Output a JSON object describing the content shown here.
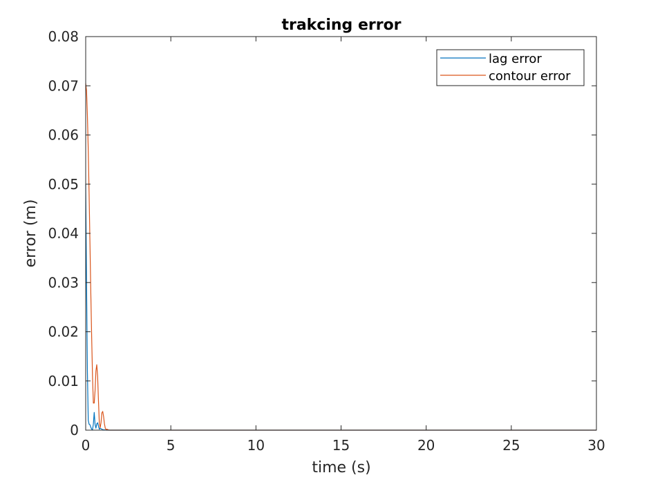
{
  "chart_data": {
    "type": "line",
    "title": "trakcing error",
    "xlabel": "time (s)",
    "ylabel": "error (m)",
    "xlim": [
      0,
      30
    ],
    "ylim": [
      0,
      0.08
    ],
    "xticks": [
      0,
      5,
      10,
      15,
      20,
      25,
      30
    ],
    "xtick_labels": [
      "0",
      "5",
      "10",
      "15",
      "20",
      "25",
      "30"
    ],
    "yticks": [
      0,
      0.01,
      0.02,
      0.03,
      0.04,
      0.05,
      0.06,
      0.07,
      0.08
    ],
    "ytick_labels": [
      "0",
      "0.01",
      "0.02",
      "0.03",
      "0.04",
      "0.05",
      "0.06",
      "0.07",
      "0.08"
    ],
    "grid": false,
    "legend_position": "top-right",
    "series": [
      {
        "name": "lag error",
        "color": "#0072BD",
        "x": [
          0,
          0.05,
          0.1,
          0.15,
          0.2,
          0.25,
          0.3,
          0.35,
          0.4,
          0.45,
          0.5,
          0.55,
          0.6,
          0.65,
          0.7,
          0.75,
          0.8,
          0.85,
          0.9,
          1.0,
          1.1,
          1.2,
          1.5,
          2,
          5,
          10,
          15,
          20,
          25,
          30
        ],
        "y": [
          0.05,
          0.03,
          0.012,
          0.002,
          0.0012,
          0.0011,
          0.0006,
          0.0002,
          0.0001,
          0.0012,
          0.0036,
          0.0012,
          0.0004,
          0.0013,
          0.0015,
          0.0008,
          0.0002,
          0.0004,
          0.0003,
          0.0001,
          5e-05,
          0.0,
          0.0,
          0.0,
          0.0,
          0.0,
          0.0,
          0.0,
          0.0,
          0.0
        ]
      },
      {
        "name": "contour error",
        "color": "#D95319",
        "x": [
          0,
          0.05,
          0.1,
          0.15,
          0.2,
          0.25,
          0.3,
          0.35,
          0.4,
          0.45,
          0.5,
          0.55,
          0.6,
          0.65,
          0.7,
          0.75,
          0.8,
          0.85,
          0.9,
          0.95,
          1.0,
          1.05,
          1.1,
          1.15,
          1.2,
          1.25,
          1.3,
          1.4,
          1.6,
          2,
          5,
          10,
          15,
          20,
          25,
          30
        ],
        "y": [
          0.0705,
          0.069,
          0.064,
          0.057,
          0.048,
          0.038,
          0.028,
          0.019,
          0.011,
          0.0055,
          0.0055,
          0.008,
          0.012,
          0.0133,
          0.011,
          0.006,
          0.0015,
          0.0005,
          0.0015,
          0.0035,
          0.0038,
          0.0028,
          0.0013,
          0.0004,
          0.0001,
          0.0002,
          0.0001,
          0.0,
          0.0,
          0.0,
          0.0,
          0.0,
          0.0,
          0.0,
          0.0,
          0.0
        ]
      }
    ]
  }
}
